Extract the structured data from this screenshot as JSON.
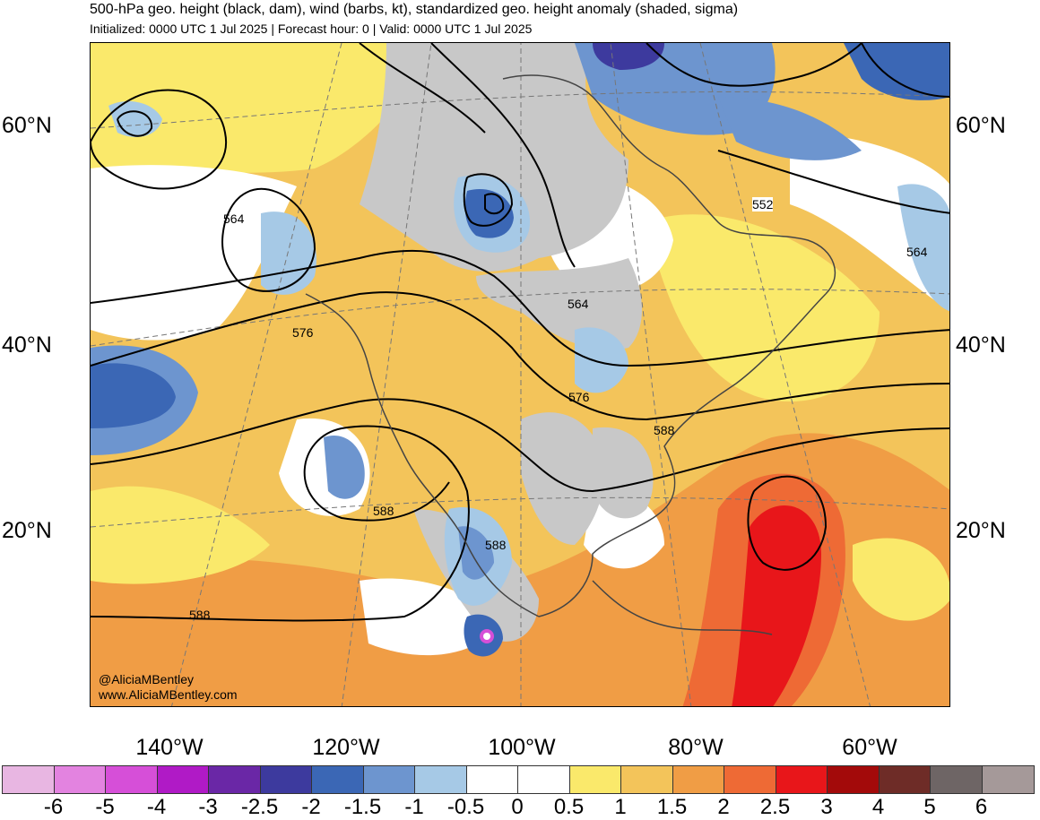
{
  "header": {
    "title": "500-hPa geo. height (black, dam), wind (barbs, kt), standardized geo. height anomaly (shaded, sigma)",
    "subtitle": "Initialized: 0000 UTC 1 Jul 2025 | Forecast hour: 0 | Valid: 0000 UTC 1 Jul 2025"
  },
  "map": {
    "lat_labels": [
      "60°N",
      "40°N",
      "20°N"
    ],
    "lon_labels": [
      "140°W",
      "120°W",
      "100°W",
      "80°W",
      "60°W"
    ],
    "contour_labels": [
      "552",
      "564",
      "564",
      "564",
      "576",
      "576",
      "588",
      "588",
      "588",
      "588"
    ],
    "credit_handle": "@AliciaMBentley",
    "credit_url": "www.AliciaMBentley.com"
  },
  "colorbar": {
    "ticks": [
      "-6",
      "-5",
      "-4",
      "-3",
      "-2.5",
      "-2",
      "-1.5",
      "-1",
      "-0.5",
      "0",
      "0.5",
      "1",
      "1.5",
      "2",
      "2.5",
      "3",
      "4",
      "5",
      "6"
    ],
    "colors": [
      "#e8b6e2",
      "#e383e0",
      "#d64fd8",
      "#b01ac6",
      "#6a27a6",
      "#3d3a9e",
      "#3b67b5",
      "#6d95cf",
      "#a6c9e6",
      "#ffffff",
      "#ffffff",
      "#fae96b",
      "#f3c45a",
      "#f09d45",
      "#ee6a35",
      "#e8161a",
      "#a30a0a",
      "#6e2c27",
      "#6e6565",
      "#a59999"
    ]
  }
}
